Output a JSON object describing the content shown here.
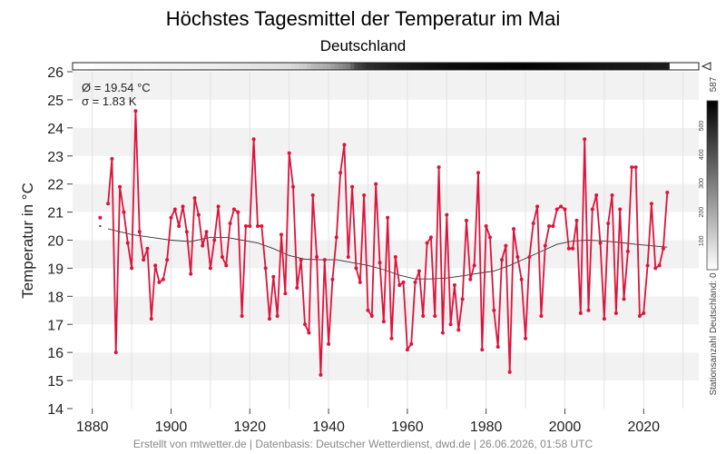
{
  "chart_data": {
    "type": "line",
    "title": "Höchstes Tagesmittel der Temperatur im Mai",
    "subtitle": "Deutschland",
    "ylabel": "Temperatur in °C",
    "xlabel": "",
    "ylim": [
      14,
      26
    ],
    "xlim": [
      1875,
      2034
    ],
    "yticks": [
      14,
      15,
      16,
      17,
      18,
      19,
      20,
      21,
      22,
      23,
      24,
      25,
      26
    ],
    "xticks": [
      1880,
      1900,
      1920,
      1940,
      1960,
      1980,
      2000,
      2020
    ],
    "grid": true,
    "stats": {
      "mean": "Ø = 19.54 °C",
      "sigma": "σ = 1.83 K"
    },
    "footer": "Erstellt von mtwetter.de | Datenbasis: Deutscher Wetterdienst, dwd.de | 26.06.2026, 01:58 UTC",
    "colorbar": {
      "label": "Stationsanzahl Deutschland: 0",
      "max_label": "587",
      "ticks": [
        100,
        200,
        300,
        400,
        500
      ],
      "max": 587
    },
    "station_counts": [
      [
        1881,
        10
      ],
      [
        1890,
        20
      ],
      [
        1900,
        30
      ],
      [
        1910,
        40
      ],
      [
        1920,
        60
      ],
      [
        1930,
        80
      ],
      [
        1934,
        120
      ],
      [
        1936,
        160
      ],
      [
        1940,
        200
      ],
      [
        1942,
        240
      ],
      [
        1945,
        300
      ],
      [
        1947,
        420
      ],
      [
        1950,
        480
      ],
      [
        1955,
        510
      ],
      [
        1960,
        530
      ],
      [
        1970,
        560
      ],
      [
        1980,
        570
      ],
      [
        1990,
        580
      ],
      [
        2000,
        560
      ],
      [
        2010,
        540
      ],
      [
        2020,
        530
      ],
      [
        2026,
        520
      ]
    ],
    "series": [
      {
        "values": [
          [
            1882,
            20.8
          ],
          [
            1884,
            21.3
          ],
          [
            1885,
            22.9
          ],
          [
            1886,
            16.0
          ],
          [
            1887,
            21.9
          ],
          [
            1888,
            21.0
          ],
          [
            1889,
            19.9
          ],
          [
            1890,
            19.0
          ],
          [
            1891,
            24.6
          ],
          [
            1892,
            20.3
          ],
          [
            1893,
            19.3
          ],
          [
            1894,
            19.7
          ],
          [
            1895,
            17.2
          ],
          [
            1896,
            19.1
          ],
          [
            1897,
            18.5
          ],
          [
            1898,
            18.6
          ],
          [
            1899,
            19.3
          ],
          [
            1900,
            20.8
          ],
          [
            1901,
            21.1
          ],
          [
            1902,
            20.5
          ],
          [
            1903,
            21.2
          ],
          [
            1904,
            20.3
          ],
          [
            1905,
            18.8
          ],
          [
            1906,
            21.5
          ],
          [
            1907,
            20.9
          ],
          [
            1908,
            19.8
          ],
          [
            1909,
            20.3
          ],
          [
            1910,
            19.0
          ],
          [
            1911,
            20.0
          ],
          [
            1912,
            21.2
          ],
          [
            1913,
            19.4
          ],
          [
            1914,
            19.1
          ],
          [
            1915,
            20.6
          ],
          [
            1916,
            21.1
          ],
          [
            1917,
            21.0
          ],
          [
            1918,
            17.3
          ],
          [
            1919,
            20.5
          ],
          [
            1920,
            20.5
          ],
          [
            1921,
            23.6
          ],
          [
            1922,
            20.5
          ],
          [
            1923,
            20.5
          ],
          [
            1924,
            19.0
          ],
          [
            1925,
            17.2
          ],
          [
            1926,
            18.7
          ],
          [
            1927,
            17.3
          ],
          [
            1928,
            20.2
          ],
          [
            1929,
            18.1
          ],
          [
            1930,
            23.1
          ],
          [
            1931,
            21.9
          ],
          [
            1932,
            18.3
          ],
          [
            1933,
            19.3
          ],
          [
            1934,
            17.0
          ],
          [
            1935,
            16.7
          ],
          [
            1936,
            21.6
          ],
          [
            1937,
            19.4
          ],
          [
            1938,
            15.2
          ],
          [
            1939,
            19.3
          ],
          [
            1940,
            16.3
          ],
          [
            1941,
            18.6
          ],
          [
            1942,
            20.1
          ],
          [
            1943,
            22.4
          ],
          [
            1944,
            23.4
          ],
          [
            1945,
            19.4
          ],
          [
            1946,
            21.9
          ],
          [
            1947,
            19.0
          ],
          [
            1948,
            18.5
          ],
          [
            1949,
            21.6
          ],
          [
            1950,
            17.5
          ],
          [
            1951,
            17.3
          ],
          [
            1952,
            22.0
          ],
          [
            1953,
            19.2
          ],
          [
            1954,
            17.1
          ],
          [
            1955,
            20.8
          ],
          [
            1956,
            16.5
          ],
          [
            1957,
            19.4
          ],
          [
            1958,
            18.4
          ],
          [
            1959,
            18.5
          ],
          [
            1960,
            16.1
          ],
          [
            1961,
            16.3
          ],
          [
            1962,
            18.5
          ],
          [
            1963,
            18.9
          ],
          [
            1964,
            17.3
          ],
          [
            1965,
            19.9
          ],
          [
            1966,
            20.1
          ],
          [
            1967,
            17.3
          ],
          [
            1968,
            22.6
          ],
          [
            1969,
            16.7
          ],
          [
            1970,
            20.9
          ],
          [
            1971,
            17.0
          ],
          [
            1972,
            18.4
          ],
          [
            1973,
            16.8
          ],
          [
            1974,
            17.9
          ],
          [
            1975,
            20.7
          ],
          [
            1976,
            18.6
          ],
          [
            1977,
            19.1
          ],
          [
            1978,
            22.4
          ],
          [
            1979,
            16.1
          ],
          [
            1980,
            20.5
          ],
          [
            1981,
            20.1
          ],
          [
            1982,
            17.5
          ],
          [
            1983,
            16.2
          ],
          [
            1984,
            19.3
          ],
          [
            1985,
            19.8
          ],
          [
            1986,
            15.3
          ],
          [
            1987,
            20.4
          ],
          [
            1988,
            19.4
          ],
          [
            1989,
            18.6
          ],
          [
            1990,
            16.5
          ],
          [
            1991,
            19.4
          ],
          [
            1992,
            20.6
          ],
          [
            1993,
            21.2
          ],
          [
            1994,
            17.3
          ],
          [
            1995,
            19.8
          ],
          [
            1996,
            20.5
          ],
          [
            1997,
            20.5
          ],
          [
            1998,
            21.1
          ],
          [
            1999,
            21.2
          ],
          [
            2000,
            21.1
          ],
          [
            2001,
            19.7
          ],
          [
            2002,
            19.7
          ],
          [
            2003,
            20.7
          ],
          [
            2004,
            17.4
          ],
          [
            2005,
            23.6
          ],
          [
            2006,
            17.5
          ],
          [
            2007,
            21.1
          ],
          [
            2008,
            21.6
          ],
          [
            2009,
            19.9
          ],
          [
            2010,
            17.2
          ],
          [
            2011,
            20.6
          ],
          [
            2012,
            21.6
          ],
          [
            2013,
            17.4
          ],
          [
            2014,
            21.1
          ],
          [
            2015,
            17.9
          ],
          [
            2016,
            19.6
          ],
          [
            2017,
            22.6
          ],
          [
            2018,
            22.6
          ],
          [
            2019,
            17.3
          ],
          [
            2020,
            17.4
          ],
          [
            2021,
            19.1
          ],
          [
            2022,
            21.3
          ],
          [
            2023,
            19.0
          ],
          [
            2024,
            19.1
          ],
          [
            2025,
            19.7
          ],
          [
            2026,
            21.7
          ]
        ],
        "color": "#dc143c"
      },
      {
        "type": "smooth",
        "color": "#333333",
        "values": [
          [
            1884,
            20.4
          ],
          [
            1890,
            20.2
          ],
          [
            1895,
            20.1
          ],
          [
            1900,
            20.0
          ],
          [
            1905,
            19.95
          ],
          [
            1910,
            20.1
          ],
          [
            1914,
            20.1
          ],
          [
            1918,
            20.0
          ],
          [
            1922,
            19.9
          ],
          [
            1926,
            19.7
          ],
          [
            1930,
            19.45
          ],
          [
            1934,
            19.32
          ],
          [
            1938,
            19.3
          ],
          [
            1942,
            19.3
          ],
          [
            1946,
            19.2
          ],
          [
            1950,
            19.1
          ],
          [
            1954,
            18.95
          ],
          [
            1958,
            18.75
          ],
          [
            1962,
            18.62
          ],
          [
            1966,
            18.62
          ],
          [
            1970,
            18.65
          ],
          [
            1974,
            18.73
          ],
          [
            1978,
            18.82
          ],
          [
            1982,
            18.9
          ],
          [
            1986,
            19.1
          ],
          [
            1990,
            19.35
          ],
          [
            1994,
            19.6
          ],
          [
            1998,
            19.85
          ],
          [
            2002,
            19.97
          ],
          [
            2006,
            20.0
          ],
          [
            2010,
            19.97
          ],
          [
            2014,
            19.92
          ],
          [
            2018,
            19.85
          ],
          [
            2022,
            19.8
          ],
          [
            2026,
            19.75
          ]
        ]
      }
    ]
  }
}
